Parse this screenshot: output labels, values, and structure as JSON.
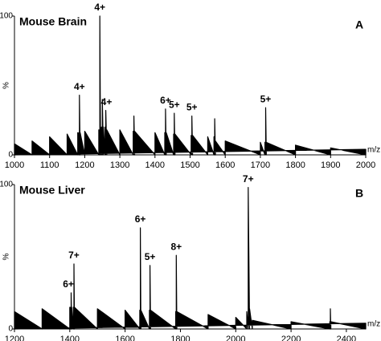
{
  "chart_data": [
    {
      "type": "area",
      "title": "Mouse Brain",
      "panel_label": "A",
      "x_label": "m/z",
      "y_label": "%",
      "xlim": [
        1000,
        2000
      ],
      "xticks": [
        1000,
        1100,
        1200,
        1300,
        1400,
        1500,
        1600,
        1700,
        1800,
        1900,
        2000
      ],
      "ylim": [
        0,
        100
      ],
      "yticks": [
        0,
        100
      ],
      "series": [
        {
          "color": "#000000",
          "x": [
            1000,
            1050,
            1100,
            1150,
            1180,
            1183,
            1185,
            1187,
            1200,
            1240,
            1242,
            1243,
            1245,
            1248,
            1250,
            1253,
            1258,
            1260,
            1263,
            1300,
            1338,
            1340,
            1342,
            1400,
            1428,
            1430,
            1432,
            1453,
            1455,
            1457,
            1503,
            1505,
            1507,
            1550,
            1568,
            1570,
            1572,
            1600,
            1700,
            1713,
            1715,
            1717,
            1800,
            1900,
            2000
          ],
          "values": [
            8,
            10,
            13,
            15,
            16,
            16,
            43,
            16,
            17,
            18,
            18,
            100,
            20,
            20,
            40,
            20,
            20,
            32,
            18,
            18,
            17,
            28,
            17,
            16,
            16,
            33,
            16,
            15,
            30,
            15,
            14,
            28,
            14,
            13,
            13,
            26,
            10,
            10,
            9,
            9,
            34,
            9,
            7,
            5,
            4
          ]
        }
      ],
      "annotations": [
        {
          "text": "4+",
          "x": 1243,
          "y": 100
        },
        {
          "text": "4+",
          "x": 1185,
          "y": 43
        },
        {
          "text": "4+",
          "x": 1262,
          "y": 32
        },
        {
          "text": "6+",
          "x": 1430,
          "y": 33
        },
        {
          "text": "5+",
          "x": 1455,
          "y": 30
        },
        {
          "text": "5+",
          "x": 1505,
          "y": 28
        },
        {
          "text": "5+",
          "x": 1715,
          "y": 34
        }
      ]
    },
    {
      "type": "area",
      "title": "Mouse Liver",
      "panel_label": "B",
      "x_label": "m/z",
      "y_label": "%",
      "xlim": [
        1200,
        2470
      ],
      "xticks": [
        1200,
        1400,
        1600,
        1800,
        2000,
        2200,
        2400
      ],
      "ylim": [
        0,
        100
      ],
      "yticks": [
        0,
        100
      ],
      "series": [
        {
          "color": "#000000",
          "x": [
            1200,
            1300,
            1400,
            1403,
            1405,
            1407,
            1413,
            1415,
            1417,
            1500,
            1600,
            1653,
            1655,
            1657,
            1688,
            1690,
            1692,
            1783,
            1785,
            1787,
            1900,
            2000,
            2040,
            2045,
            2050,
            2060,
            2200,
            2340,
            2342,
            2344,
            2470
          ],
          "values": [
            12,
            14,
            15,
            15,
            25,
            15,
            15,
            45,
            15,
            14,
            13,
            13,
            70,
            13,
            13,
            44,
            13,
            12,
            51,
            12,
            10,
            8,
            12,
            98,
            14,
            6,
            5,
            5,
            14,
            5,
            4
          ]
        }
      ],
      "annotations": [
        {
          "text": "7+",
          "x": 2045,
          "y": 98
        },
        {
          "text": "6+",
          "x": 1655,
          "y": 70
        },
        {
          "text": "8+",
          "x": 1785,
          "y": 51
        },
        {
          "text": "5+",
          "x": 1690,
          "y": 44
        },
        {
          "text": "7+",
          "x": 1415,
          "y": 45
        },
        {
          "text": "6+",
          "x": 1395,
          "y": 25
        }
      ]
    }
  ]
}
